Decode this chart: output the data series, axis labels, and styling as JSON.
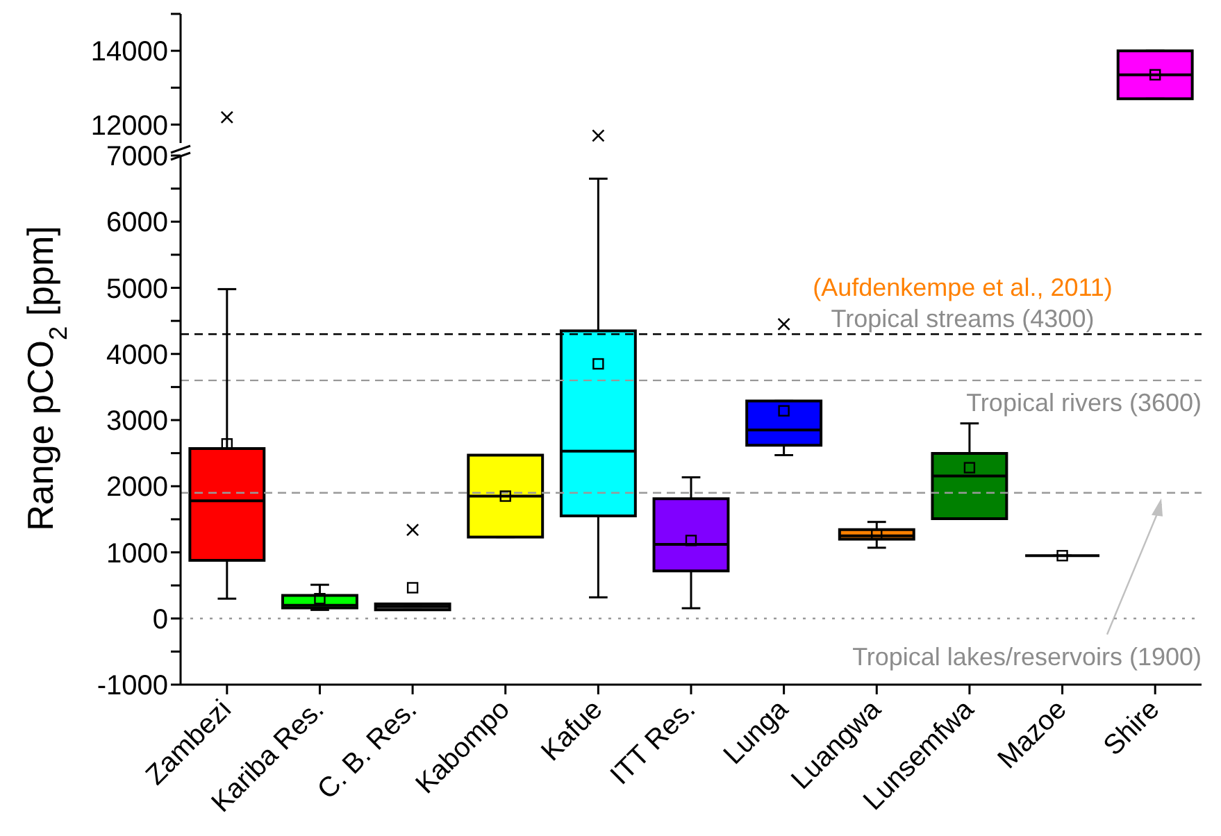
{
  "chart_data": [
    {
      "type": "box",
      "categories": [
        "Zambezi",
        "Kariba Res.",
        "C. B. Res.",
        "Kabompo",
        "Kafue",
        "ITT Res.",
        "Lunga",
        "Luangwa",
        "Lunsemfwa",
        "Mazoe",
        "Shire"
      ],
      "ylim": [
        11500,
        15000
      ],
      "yticks": [
        12000,
        {
          "value": 13000,
          "label": null
        },
        14000,
        {
          "value": 15000,
          "label": null
        }
      ],
      "tick_labels": "y",
      "marker": "cross",
      "boxes": [
        null,
        null,
        null,
        null,
        null,
        null,
        null,
        null,
        null,
        null,
        {
          "low": 12700,
          "q1": 12700,
          "median": 13350,
          "q3": 14000,
          "high": 14000,
          "mean": 13350
        }
      ],
      "colors": [
        null,
        null,
        null,
        null,
        null,
        null,
        null,
        null,
        null,
        null,
        "#ff00ff"
      ],
      "series": [
        {
          "type": "scatter",
          "x": [
            "Zambezi",
            "Kafue"
          ],
          "values": [
            12200,
            11700
          ],
          "color": "#000000"
        }
      ]
    },
    {
      "type": "box",
      "categories": [
        "Zambezi",
        "Kariba Res.",
        "C. B. Res.",
        "Kabompo",
        "Kafue",
        "ITT Res.",
        "Lunga",
        "Luangwa",
        "Lunsemfwa",
        "Mazoe",
        "Shire"
      ],
      "ylabel": "Range pCO$_{2}$ [ppm]",
      "ylim": [
        -1000,
        7000
      ],
      "yticks": [
        -1000,
        {
          "value": -500,
          "label": null
        },
        0,
        {
          "value": 500,
          "label": null
        },
        1000,
        {
          "value": 1500,
          "label": null
        },
        2000,
        {
          "value": 2500,
          "label": null
        },
        3000,
        {
          "value": 3500,
          "label": null
        },
        4000,
        {
          "value": 4500,
          "label": null
        },
        5000,
        {
          "value": 5500,
          "label": null
        },
        6000,
        {
          "value": 6500,
          "label": null
        },
        7000
      ],
      "marker": "cross",
      "boxes": [
        {
          "low": 300,
          "q1": 880,
          "median": 1780,
          "q3": 2570,
          "high": 4980,
          "mean": 2640
        },
        {
          "low": 130,
          "q1": 160,
          "median": 200,
          "q3": 350,
          "high": 510,
          "mean": 300
        },
        {
          "low": 130,
          "q1": 130,
          "median": 180,
          "q3": 220,
          "high": 220,
          "mean": 465,
          "outliers": [
            1340
          ]
        },
        {
          "low": 1230,
          "q1": 1230,
          "median": 1850,
          "q3": 2470,
          "high": 2470,
          "mean": 1850
        },
        {
          "low": 320,
          "q1": 1550,
          "median": 2530,
          "q3": 4350,
          "high": 6650,
          "mean": 3850
        },
        {
          "low": 155,
          "q1": 720,
          "median": 1120,
          "q3": 1810,
          "high": 2135,
          "mean": 1180
        },
        {
          "low": 2470,
          "q1": 2620,
          "median": 2850,
          "q3": 3290,
          "high": 3290,
          "mean": 3140,
          "outliers": [
            4450
          ]
        },
        {
          "low": 1070,
          "q1": 1200,
          "median": 1250,
          "q3": 1345,
          "high": 1460,
          "mean": 1275
        },
        {
          "low": 1510,
          "q1": 1510,
          "median": 2155,
          "q3": 2495,
          "high": 2950,
          "mean": 2280
        },
        {
          "low": 950,
          "q1": 950,
          "median": 950,
          "q3": 950,
          "high": 950,
          "mean": 950
        },
        null
      ],
      "colors": [
        "#ff0000",
        "#00ff00",
        "#808080",
        "#ffff00",
        "#00ffff",
        "#8000ff",
        "#0000ff",
        "#ff8000",
        "#008000",
        "#000000",
        null
      ],
      "ref_lines": [
        {
          "axis": "y",
          "value": 4300,
          "label": "Tropical streams (4300)",
          "color": "#000000",
          "line_style": "dashed"
        },
        {
          "axis": "y",
          "value": 3600,
          "label": "Tropical rivers (3600)",
          "color": "#999999",
          "line_style": "dashed"
        },
        {
          "axis": "y",
          "value": 1900,
          "label": "Tropical lakes/reservoirs (1900)",
          "color": "#999999",
          "line_style": "dashed"
        },
        {
          "axis": "y",
          "value": 0,
          "color": "#999999",
          "line_style": "dotted"
        }
      ],
      "annotations": [
        "(Aufdenkempe et al., 2011)"
      ]
    }
  ]
}
